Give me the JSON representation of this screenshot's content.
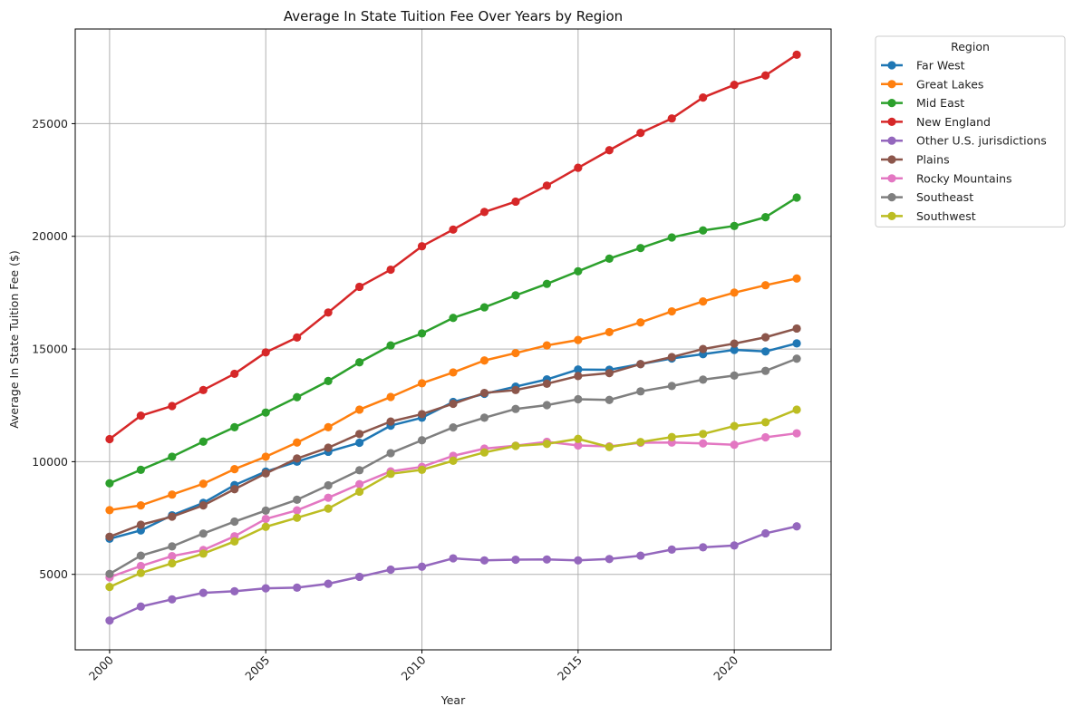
{
  "chart_data": {
    "type": "line",
    "title": "Average In State Tuition Fee Over Years by Region",
    "xlabel": "Year",
    "ylabel": "Average In State Tuition Fee ($)",
    "xlim": [
      1998.9,
      2023.1
    ],
    "ylim": [
      1650,
      29200
    ],
    "x_ticks": [
      2000,
      2005,
      2010,
      2015,
      2020
    ],
    "y_ticks": [
      5000,
      10000,
      15000,
      20000,
      25000
    ],
    "grid": true,
    "legend": {
      "title": "Region",
      "placement": "outside-right-top"
    },
    "x": [
      2000,
      2001,
      2002,
      2003,
      2004,
      2005,
      2006,
      2007,
      2008,
      2009,
      2010,
      2011,
      2012,
      2013,
      2014,
      2015,
      2016,
      2017,
      2018,
      2019,
      2020,
      2021,
      2022
    ],
    "series": [
      {
        "name": "Far West",
        "color": "#1f77b4",
        "values": [
          6580,
          6950,
          7620,
          8170,
          8960,
          9560,
          10000,
          10440,
          10840,
          11600,
          11950,
          12650,
          13010,
          13330,
          13650,
          14090,
          14080,
          14330,
          14580,
          14770,
          14960,
          14890,
          15250
        ]
      },
      {
        "name": "Great Lakes",
        "color": "#ff7f0e",
        "values": [
          7850,
          8060,
          8540,
          9020,
          9670,
          10220,
          10850,
          11530,
          12310,
          12870,
          13480,
          13960,
          14490,
          14820,
          15160,
          15400,
          15750,
          16180,
          16670,
          17110,
          17500,
          17830,
          18130
        ]
      },
      {
        "name": "Mid East",
        "color": "#2ca02c",
        "values": [
          9040,
          9640,
          10220,
          10890,
          11530,
          12180,
          12860,
          13580,
          14410,
          15160,
          15690,
          16380,
          16850,
          17380,
          17890,
          18450,
          19010,
          19480,
          19950,
          20260,
          20460,
          20850,
          21720
        ]
      },
      {
        "name": "New England",
        "color": "#d62728",
        "values": [
          11000,
          12040,
          12470,
          13180,
          13900,
          14850,
          15510,
          16620,
          17760,
          18520,
          19560,
          20300,
          21080,
          21540,
          22250,
          23040,
          23820,
          24590,
          25230,
          26160,
          26720,
          27140,
          28060
        ]
      },
      {
        "name": "Other U.S. jurisdictions",
        "color": "#9467bd",
        "values": [
          2950,
          3570,
          3890,
          4180,
          4250,
          4380,
          4410,
          4580,
          4890,
          5210,
          5340,
          5710,
          5620,
          5650,
          5660,
          5620,
          5680,
          5830,
          6100,
          6200,
          6280,
          6820,
          7130
        ]
      },
      {
        "name": "Plains",
        "color": "#8c564b",
        "values": [
          6670,
          7200,
          7560,
          8060,
          8780,
          9480,
          10140,
          10620,
          11230,
          11780,
          12110,
          12570,
          13050,
          13180,
          13460,
          13800,
          13930,
          14330,
          14640,
          15000,
          15240,
          15520,
          15910
        ]
      },
      {
        "name": "Rocky Mountains",
        "color": "#e377c2",
        "values": [
          4870,
          5370,
          5810,
          6080,
          6690,
          7460,
          7840,
          8400,
          9000,
          9570,
          9770,
          10260,
          10580,
          10710,
          10880,
          10720,
          10680,
          10840,
          10850,
          10810,
          10750,
          11080,
          11260
        ]
      },
      {
        "name": "Southeast",
        "color": "#7f7f7f",
        "values": [
          5020,
          5830,
          6240,
          6810,
          7340,
          7830,
          8310,
          8950,
          9620,
          10380,
          10950,
          11520,
          11950,
          12340,
          12510,
          12770,
          12740,
          13120,
          13360,
          13640,
          13820,
          14030,
          14570
        ]
      },
      {
        "name": "Southwest",
        "color": "#bcbd22",
        "values": [
          4440,
          5060,
          5490,
          5920,
          6460,
          7110,
          7510,
          7920,
          8670,
          9460,
          9640,
          10040,
          10410,
          10700,
          10790,
          11010,
          10650,
          10870,
          11090,
          11230,
          11580,
          11750,
          12310
        ]
      }
    ]
  }
}
